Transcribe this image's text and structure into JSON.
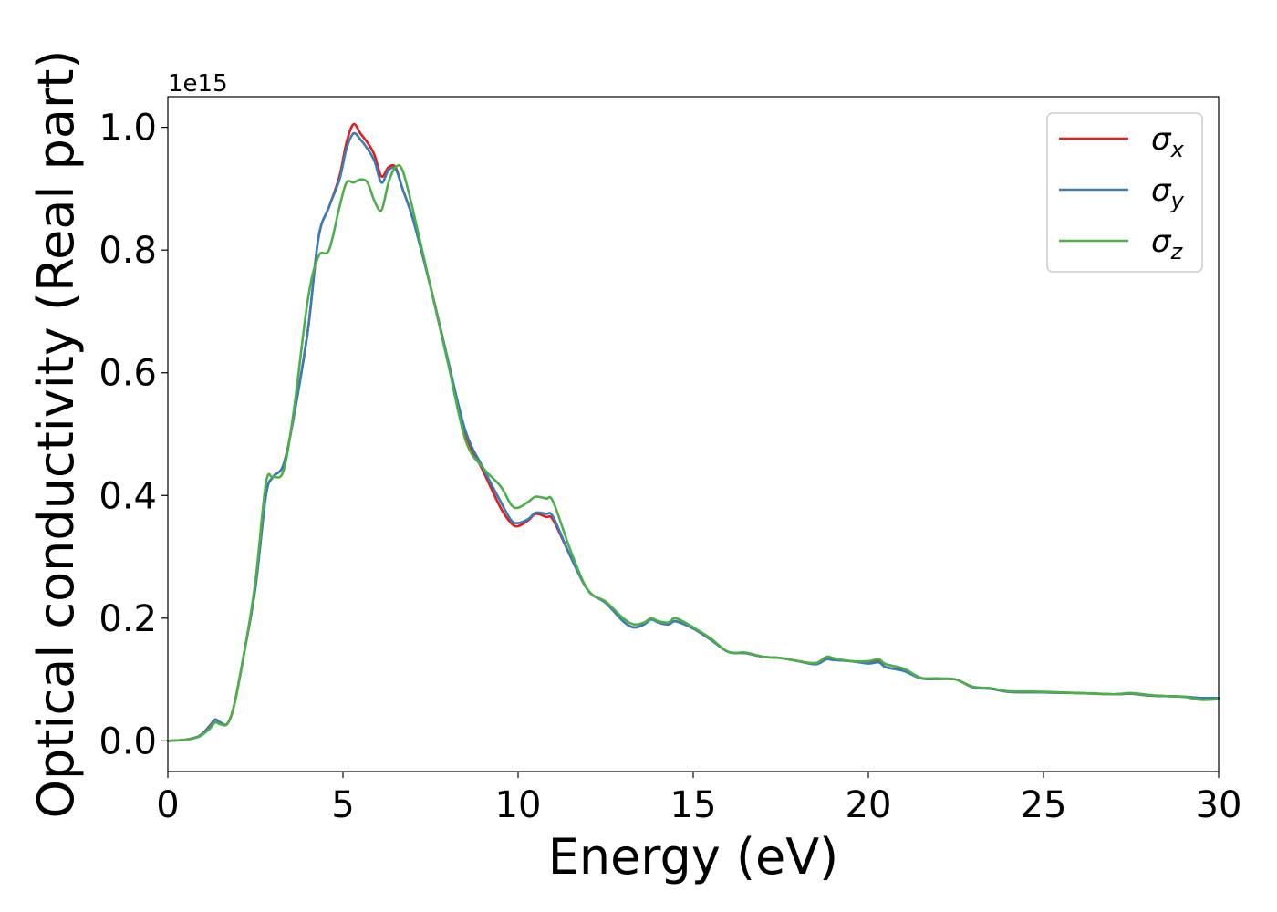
{
  "chart_data": {
    "type": "line",
    "title": "",
    "xlabel": "Energy (eV)",
    "ylabel": "Optical conductivity (Real part)",
    "y_offset_label": "1e15",
    "xlim": [
      0,
      30
    ],
    "ylim": [
      -0.05,
      1.05
    ],
    "x_ticks": [
      0,
      5,
      10,
      15,
      20,
      25,
      30
    ],
    "x_tick_labels": [
      "0",
      "5",
      "10",
      "15",
      "20",
      "25",
      "30"
    ],
    "y_ticks": [
      0.0,
      0.2,
      0.4,
      0.6,
      0.8,
      1.0
    ],
    "y_tick_labels": [
      "0.0",
      "0.2",
      "0.4",
      "0.6",
      "0.8",
      "1.0"
    ],
    "grid": false,
    "legend_position": "top-right",
    "series": [
      {
        "name": "σx",
        "symbol": "σ",
        "subscript": "x",
        "color": "#e41a1c",
        "x": [
          0,
          0.5,
          0.9,
          1.2,
          1.35,
          1.5,
          1.7,
          1.9,
          2.2,
          2.5,
          2.8,
          3.0,
          3.3,
          3.6,
          4.0,
          4.3,
          4.6,
          4.9,
          5.1,
          5.3,
          5.5,
          5.7,
          5.9,
          6.1,
          6.3,
          6.5,
          6.7,
          7.0,
          7.5,
          8.0,
          8.5,
          9.0,
          9.5,
          9.8,
          10.0,
          10.3,
          10.5,
          10.8,
          11.0,
          11.5,
          12.0,
          12.5,
          13.0,
          13.3,
          13.6,
          13.8,
          14.0,
          14.3,
          14.5,
          15.0,
          15.5,
          16.0,
          16.5,
          17.0,
          17.5,
          18.0,
          18.5,
          18.8,
          19.0,
          19.5,
          20.0,
          20.3,
          20.5,
          21.0,
          21.5,
          22.0,
          22.5,
          23.0,
          23.5,
          24.0,
          25.0,
          26.0,
          27.0,
          27.5,
          28.0,
          28.5,
          29.0,
          29.5,
          30.0
        ],
        "values": [
          0.0,
          0.002,
          0.008,
          0.025,
          0.035,
          0.03,
          0.028,
          0.06,
          0.15,
          0.25,
          0.4,
          0.43,
          0.45,
          0.53,
          0.67,
          0.82,
          0.87,
          0.92,
          0.975,
          1.005,
          0.99,
          0.975,
          0.955,
          0.92,
          0.935,
          0.935,
          0.9,
          0.85,
          0.74,
          0.62,
          0.5,
          0.44,
          0.38,
          0.355,
          0.35,
          0.36,
          0.37,
          0.365,
          0.36,
          0.3,
          0.245,
          0.225,
          0.195,
          0.185,
          0.19,
          0.2,
          0.193,
          0.19,
          0.195,
          0.183,
          0.165,
          0.145,
          0.143,
          0.137,
          0.135,
          0.13,
          0.125,
          0.133,
          0.132,
          0.13,
          0.127,
          0.13,
          0.12,
          0.115,
          0.102,
          0.101,
          0.1,
          0.087,
          0.085,
          0.08,
          0.079,
          0.078,
          0.076,
          0.077,
          0.074,
          0.073,
          0.072,
          0.07,
          0.07
        ]
      },
      {
        "name": "σy",
        "symbol": "σ",
        "subscript": "y",
        "color": "#377eb8",
        "x": [
          0,
          0.5,
          0.9,
          1.2,
          1.35,
          1.5,
          1.7,
          1.9,
          2.2,
          2.5,
          2.8,
          3.0,
          3.3,
          3.6,
          4.0,
          4.3,
          4.6,
          4.9,
          5.1,
          5.3,
          5.5,
          5.7,
          5.9,
          6.1,
          6.3,
          6.5,
          6.7,
          7.0,
          7.5,
          8.0,
          8.5,
          9.0,
          9.5,
          9.8,
          10.0,
          10.3,
          10.5,
          10.8,
          11.0,
          11.5,
          12.0,
          12.5,
          13.0,
          13.3,
          13.6,
          13.8,
          14.0,
          14.3,
          14.5,
          15.0,
          15.5,
          16.0,
          16.5,
          17.0,
          17.5,
          18.0,
          18.5,
          18.8,
          19.0,
          19.5,
          20.0,
          20.3,
          20.5,
          21.0,
          21.5,
          22.0,
          22.5,
          23.0,
          23.5,
          24.0,
          25.0,
          26.0,
          27.0,
          27.5,
          28.0,
          28.5,
          29.0,
          29.5,
          30.0
        ],
        "values": [
          0.0,
          0.002,
          0.008,
          0.024,
          0.034,
          0.03,
          0.028,
          0.06,
          0.15,
          0.25,
          0.4,
          0.43,
          0.45,
          0.53,
          0.67,
          0.82,
          0.87,
          0.915,
          0.965,
          0.99,
          0.98,
          0.965,
          0.945,
          0.91,
          0.93,
          0.932,
          0.9,
          0.85,
          0.74,
          0.62,
          0.505,
          0.445,
          0.39,
          0.36,
          0.355,
          0.362,
          0.372,
          0.37,
          0.365,
          0.3,
          0.245,
          0.225,
          0.195,
          0.185,
          0.19,
          0.198,
          0.193,
          0.19,
          0.195,
          0.183,
          0.165,
          0.145,
          0.143,
          0.137,
          0.135,
          0.13,
          0.125,
          0.133,
          0.132,
          0.13,
          0.126,
          0.128,
          0.12,
          0.114,
          0.102,
          0.101,
          0.1,
          0.087,
          0.085,
          0.08,
          0.079,
          0.078,
          0.076,
          0.077,
          0.074,
          0.073,
          0.072,
          0.07,
          0.07
        ]
      },
      {
        "name": "σz",
        "symbol": "σ",
        "subscript": "z",
        "color": "#4daf4a",
        "x": [
          0,
          0.5,
          0.9,
          1.2,
          1.35,
          1.5,
          1.7,
          1.9,
          2.2,
          2.5,
          2.8,
          3.0,
          3.3,
          3.6,
          4.0,
          4.3,
          4.6,
          4.9,
          5.1,
          5.3,
          5.5,
          5.7,
          5.9,
          6.1,
          6.3,
          6.5,
          6.7,
          7.0,
          7.5,
          8.0,
          8.5,
          9.0,
          9.5,
          9.8,
          10.0,
          10.3,
          10.5,
          10.8,
          11.0,
          11.5,
          12.0,
          12.5,
          13.0,
          13.3,
          13.6,
          13.8,
          14.0,
          14.3,
          14.5,
          15.0,
          15.5,
          16.0,
          16.5,
          17.0,
          17.5,
          18.0,
          18.5,
          18.8,
          19.0,
          19.5,
          20.0,
          20.3,
          20.5,
          21.0,
          21.5,
          22.0,
          22.5,
          23.0,
          23.5,
          24.0,
          25.0,
          26.0,
          27.0,
          27.5,
          28.0,
          28.5,
          29.0,
          29.5,
          30.0
        ],
        "values": [
          0.0,
          0.002,
          0.007,
          0.02,
          0.03,
          0.027,
          0.028,
          0.06,
          0.15,
          0.26,
          0.42,
          0.43,
          0.44,
          0.54,
          0.72,
          0.79,
          0.8,
          0.87,
          0.91,
          0.91,
          0.915,
          0.91,
          0.88,
          0.865,
          0.91,
          0.935,
          0.93,
          0.865,
          0.74,
          0.615,
          0.49,
          0.445,
          0.415,
          0.385,
          0.38,
          0.39,
          0.398,
          0.395,
          0.39,
          0.31,
          0.245,
          0.227,
          0.2,
          0.19,
          0.193,
          0.2,
          0.195,
          0.193,
          0.2,
          0.185,
          0.167,
          0.145,
          0.144,
          0.137,
          0.135,
          0.13,
          0.127,
          0.137,
          0.135,
          0.13,
          0.13,
          0.133,
          0.125,
          0.118,
          0.103,
          0.102,
          0.1,
          0.088,
          0.086,
          0.081,
          0.08,
          0.078,
          0.076,
          0.078,
          0.075,
          0.073,
          0.072,
          0.067,
          0.068
        ]
      }
    ]
  }
}
